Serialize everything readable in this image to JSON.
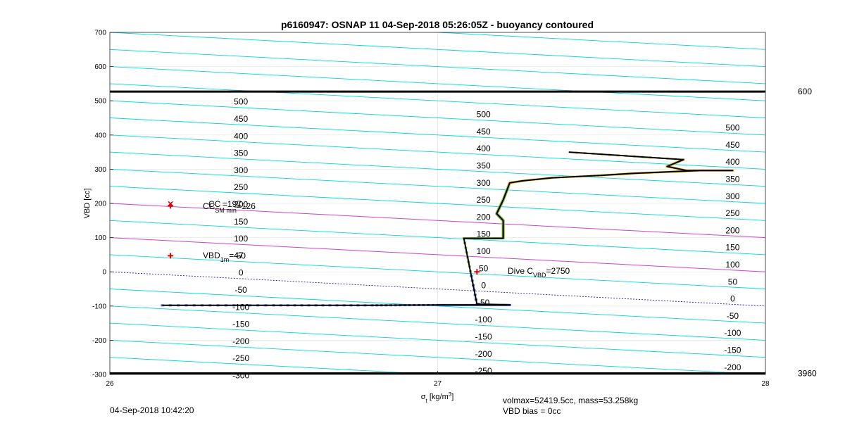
{
  "chart_data": {
    "type": "line",
    "title": "p6160947: OSNAP 11 04-Sep-2018 05:26:05Z - buoyancy contoured",
    "xlabel": "σt [kg/m³]",
    "ylabel": "VBD [cc]",
    "xlim": [
      26,
      28
    ],
    "ylim": [
      -300,
      700
    ],
    "xticks": [
      "26",
      "27",
      "28"
    ],
    "yticks": [
      "-300",
      "-200",
      "-100",
      "0",
      "100",
      "200",
      "300",
      "400",
      "500",
      "600",
      "700"
    ],
    "grid": true,
    "horizontal_lines": [
      {
        "y": 527,
        "label": "600"
      },
      {
        "y": -297,
        "label": "3960"
      }
    ],
    "contour_slope_per_unit_sigma": -50,
    "contour_levels": [
      -250,
      -200,
      -150,
      -100,
      -50,
      0,
      50,
      100,
      150,
      200,
      250,
      300,
      350,
      400,
      450,
      500
    ],
    "highlight_levels": {
      "zero": 0,
      "magenta": [
        100,
        200
      ]
    },
    "contour_label_columns": [
      {
        "x": 26.4,
        "labels": [
          "500",
          "450",
          "400",
          "350",
          "300",
          "250",
          "200",
          "150",
          "100",
          "50",
          "0",
          "-50",
          "-100",
          "-150",
          "-200",
          "-250",
          "-300"
        ],
        "y_values": [
          497,
          447,
          397,
          347,
          297,
          247,
          197,
          147,
          97,
          47,
          -3,
          -53,
          -103,
          -153,
          -203,
          -253,
          -303
        ]
      },
      {
        "x": 27.14,
        "labels": [
          "500",
          "450",
          "400",
          "350",
          "300",
          "250",
          "200",
          "150",
          "100",
          "50",
          "0",
          "-50",
          "-100",
          "-150",
          "-200",
          "-250"
        ],
        "y_values": [
          460,
          410,
          360,
          310,
          260,
          210,
          160,
          110,
          60,
          10,
          -40,
          -90,
          -140,
          -190,
          -240,
          -290
        ]
      },
      {
        "x": 27.9,
        "labels": [
          "500",
          "450",
          "400",
          "350",
          "300",
          "250",
          "200",
          "150",
          "100",
          "50",
          "0",
          "-50",
          "-100",
          "-150",
          "-200"
        ],
        "y_values": [
          421,
          371,
          321,
          271,
          221,
          171,
          121,
          71,
          21,
          -29,
          -79,
          -129,
          -179,
          -229,
          -279
        ]
      }
    ],
    "profile": {
      "name": "dive",
      "x": [
        26.16,
        26.5,
        26.8,
        27.0,
        27.12,
        27.22,
        27.12,
        27.08,
        27.2,
        27.2,
        27.2,
        27.18,
        27.2,
        27.22,
        27.26,
        27.35,
        27.5,
        27.6,
        27.7,
        27.8,
        27.9,
        27.76,
        27.7,
        27.75,
        27.4
      ],
      "y": [
        -98,
        -98,
        -98,
        -97,
        -97,
        -97,
        -95,
        98,
        98,
        120,
        150,
        170,
        210,
        260,
        266,
        275,
        282,
        288,
        292,
        296,
        296,
        296,
        308,
        328,
        350
      ]
    },
    "markers": [
      {
        "x": 26.185,
        "y": 193
      },
      {
        "x": 26.185,
        "y": 47
      },
      {
        "x": 27.12,
        "y": 0
      }
    ],
    "annotations": {
      "cc_label": "CC",
      "cc_sub": "SM min",
      "cc_value": "=126",
      "cc2_text": "=197",
      "vbd1m_label": "VBD",
      "vbd1m_sub": "1m",
      "vbd1m_value": "=47",
      "dive_label": "Dive C",
      "dive_sub": "VBD",
      "dive_value": "=2750"
    },
    "footer": {
      "timestamp": "04-Sep-2018 10:42:20",
      "volmax": "volmax=52419.5cc, mass=53.258kg",
      "vbd_bias": "VBD bias = 0cc"
    },
    "colors": {
      "contour": "#00d8d8",
      "highlight": "#cc44cc",
      "zero_line": "#2222aa",
      "profile": "#000000",
      "marker": "#dd0000",
      "points_low": "#4466cc",
      "points_high": "#e8c020"
    }
  }
}
